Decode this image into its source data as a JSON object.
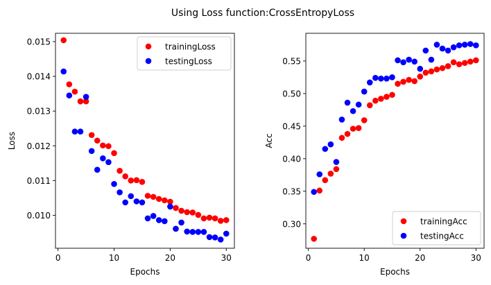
{
  "figure": {
    "suptitle": "Using Loss function:CrossEntropyLoss"
  },
  "colors": {
    "training": "#ff0000",
    "testing": "#0000ff",
    "axis": "#000000",
    "background": "#ffffff"
  },
  "chart_data": [
    {
      "type": "scatter",
      "title": "",
      "xlabel": "Epochs",
      "ylabel": "Loss",
      "xlim": [
        -0.45,
        31.45
      ],
      "ylim": [
        0.00905,
        0.01524
      ],
      "xticks": [
        0,
        10,
        20,
        30
      ],
      "xtick_labels": [
        "0",
        "10",
        "20",
        "30"
      ],
      "yticks": [
        0.01,
        0.011,
        0.012,
        0.013,
        0.014,
        0.015
      ],
      "ytick_labels": [
        "0.010",
        "0.011",
        "0.012",
        "0.013",
        "0.014",
        "0.015"
      ],
      "grid": false,
      "legend_position": "upper right",
      "x": [
        1,
        2,
        3,
        4,
        5,
        6,
        7,
        8,
        9,
        10,
        11,
        12,
        13,
        14,
        15,
        16,
        17,
        18,
        19,
        20,
        21,
        22,
        23,
        24,
        25,
        26,
        27,
        28,
        29,
        30
      ],
      "series": [
        {
          "name": "trainingLoss",
          "color": "#ff0000",
          "values": [
            0.01504,
            0.01377,
            0.01356,
            0.01328,
            0.01328,
            0.01231,
            0.01215,
            0.01201,
            0.01199,
            0.01179,
            0.01128,
            0.01112,
            0.011,
            0.01101,
            0.01096,
            0.01056,
            0.01053,
            0.01047,
            0.01043,
            0.01039,
            0.01021,
            0.01013,
            0.01009,
            0.01008,
            0.01001,
            0.00991,
            0.00993,
            0.00991,
            0.00984,
            0.00986
          ]
        },
        {
          "name": "testingLoss",
          "color": "#0000ff",
          "values": [
            0.01414,
            0.01345,
            0.01241,
            0.01241,
            0.01341,
            0.01185,
            0.01131,
            0.01164,
            0.01153,
            0.0109,
            0.01066,
            0.01037,
            0.01055,
            0.0104,
            0.01037,
            0.00991,
            0.00998,
            0.00986,
            0.00983,
            0.01025,
            0.00961,
            0.00979,
            0.00953,
            0.00952,
            0.00952,
            0.00952,
            0.00937,
            0.00936,
            0.0093,
            0.00947
          ]
        }
      ]
    },
    {
      "type": "scatter",
      "title": "",
      "xlabel": "Epochs",
      "ylabel": "Acc",
      "xlim": [
        -0.45,
        31.45
      ],
      "ylim": [
        0.2625,
        0.5925
      ],
      "xticks": [
        0,
        10,
        20,
        30
      ],
      "xtick_labels": [
        "0",
        "10",
        "20",
        "30"
      ],
      "yticks": [
        0.3,
        0.35,
        0.4,
        0.45,
        0.5,
        0.55
      ],
      "ytick_labels": [
        "0.30",
        "0.35",
        "0.40",
        "0.45",
        "0.50",
        "0.55"
      ],
      "grid": false,
      "legend_position": "lower right",
      "x": [
        1,
        2,
        3,
        4,
        5,
        6,
        7,
        8,
        9,
        10,
        11,
        12,
        13,
        14,
        15,
        16,
        17,
        18,
        19,
        20,
        21,
        22,
        23,
        24,
        25,
        26,
        27,
        28,
        29,
        30
      ],
      "series": [
        {
          "name": "trainingAcc",
          "color": "#ff0000",
          "values": [
            0.277,
            0.351,
            0.367,
            0.377,
            0.384,
            0.432,
            0.438,
            0.446,
            0.447,
            0.459,
            0.482,
            0.489,
            0.492,
            0.495,
            0.498,
            0.515,
            0.518,
            0.521,
            0.519,
            0.526,
            0.532,
            0.534,
            0.537,
            0.539,
            0.542,
            0.548,
            0.545,
            0.547,
            0.549,
            0.551
          ]
        },
        {
          "name": "testingAcc",
          "color": "#0000ff",
          "values": [
            0.349,
            0.376,
            0.415,
            0.422,
            0.395,
            0.46,
            0.486,
            0.473,
            0.483,
            0.503,
            0.517,
            0.524,
            0.523,
            0.523,
            0.525,
            0.551,
            0.548,
            0.552,
            0.549,
            0.538,
            0.566,
            0.552,
            0.575,
            0.569,
            0.566,
            0.571,
            0.574,
            0.575,
            0.576,
            0.574
          ]
        }
      ]
    }
  ]
}
